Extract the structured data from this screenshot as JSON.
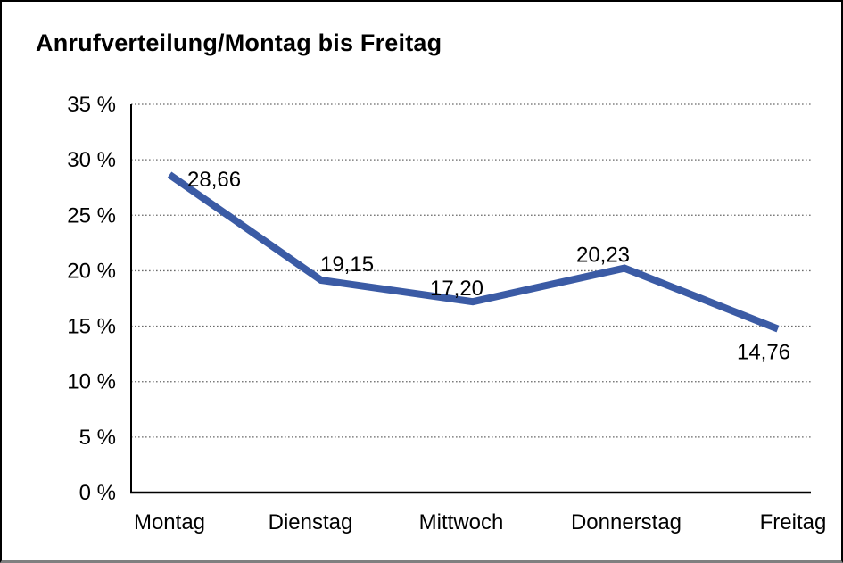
{
  "window": {
    "background": "#ffffff",
    "frame_border_color": "#000000",
    "frame_border_bottom_color": "#808080"
  },
  "chart_data": {
    "type": "line",
    "title": "Anrufverteilung/Montag bis Freitag",
    "categories": [
      "Montag",
      "Dienstag",
      "Mittwoch",
      "Donnerstag",
      "Freitag"
    ],
    "values": [
      28.66,
      19.15,
      17.2,
      20.23,
      14.76
    ],
    "point_labels": [
      "28,66",
      "19,15",
      "17,20",
      "20,23",
      "14,76"
    ],
    "xlabel": "",
    "ylabel": "",
    "ylim": [
      0,
      35
    ],
    "y_tick_step": 5,
    "y_tick_labels": [
      "0 %",
      "5 %",
      "10 %",
      "15 %",
      "20 %",
      "25 %",
      "30 %",
      "35 %"
    ],
    "grid": "horizontal-dotted",
    "legend": "none",
    "colors": {
      "line": "#3B5BA5",
      "grid": "#6a6a6a",
      "axis": "#000000",
      "text": "#000000",
      "background": "#ffffff"
    }
  }
}
